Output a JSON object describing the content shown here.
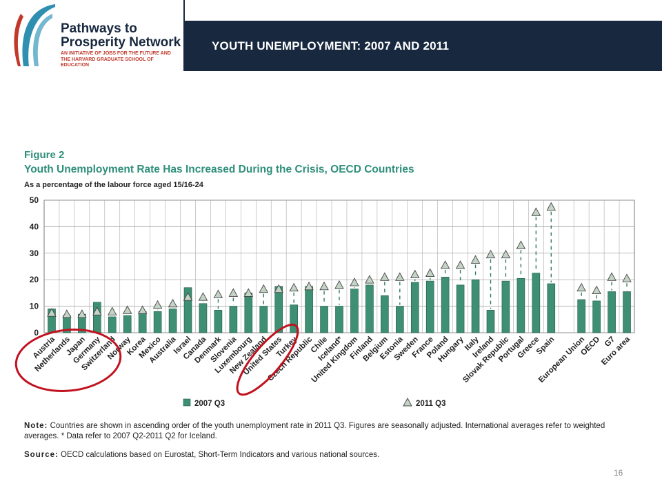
{
  "header": {
    "logo_line1": "Pathways to",
    "logo_line2": "Prosperity Network",
    "logo_sub": "AN INITIATIVE OF JOBS FOR THE FUTURE AND THE HARVARD GRADUATE SCHOOL OF EDUCATION",
    "slide_title": "YOUTH UNEMPLOYMENT: 2007 AND 2011"
  },
  "figure": {
    "label": "Figure 2",
    "title": "Youth Unemployment Rate Has Increased During the Crisis, OECD Countries",
    "subtitle": "As a percentage of the labour force aged 15/16-24"
  },
  "chart_data": {
    "type": "bar",
    "categories": [
      "Austria",
      "Netherlands",
      "Japan",
      "Germany",
      "Switzerland",
      "Norway",
      "Korea",
      "Mexico",
      "Australia",
      "Israel",
      "Canada",
      "Denmark",
      "Slovenia",
      "Luxembourg",
      "New Zealand",
      "United States",
      "Turkey",
      "Czech Republic",
      "Chile",
      "Iceland*",
      "United Kingdom",
      "Finland",
      "Belgium",
      "Estonia",
      "Sweden",
      "France",
      "Poland",
      "Hungary",
      "Italy",
      "Ireland",
      "Slovak Republic",
      "Portugal",
      "Greece",
      "Spain",
      "",
      "European Union",
      "OECD",
      "G7",
      "Euro area"
    ],
    "series": [
      {
        "name": "2007 Q3",
        "type": "bar",
        "values": [
          9,
          6.5,
          7,
          11.5,
          6,
          6.5,
          8,
          8,
          9,
          17,
          11,
          8.5,
          10,
          15,
          10,
          17.5,
          10.5,
          17.5,
          10,
          10,
          16.5,
          18,
          14,
          10,
          19,
          19.5,
          21,
          18,
          20,
          8.5,
          19.5,
          20.5,
          22.5,
          18.5,
          null,
          12.5,
          12,
          15.5,
          15.5
        ]
      },
      {
        "name": "2011 Q3",
        "type": "marker",
        "values": [
          7.5,
          7,
          7,
          8,
          8,
          8.5,
          8.5,
          10.5,
          11,
          13.5,
          13.5,
          14.5,
          15,
          15,
          16.5,
          16.5,
          17,
          17.5,
          17.5,
          18,
          19,
          20,
          21,
          21,
          22,
          22.5,
          25.5,
          25.5,
          27.5,
          29.5,
          29.5,
          33,
          45.5,
          47.5,
          null,
          17,
          16,
          21,
          20.5
        ]
      }
    ],
    "ylim": [
      0,
      50
    ],
    "yticks": [
      0,
      10,
      20,
      30,
      40,
      50
    ],
    "grid": true,
    "legend_position": "bottom",
    "colors": {
      "bar": "#3e8f73",
      "marker": "#c3d3c6",
      "title": "#2f8f7b",
      "highlight": "#c1121f"
    }
  },
  "notes": {
    "note_label": "Note:",
    "note_text": "Countries are shown in ascending order of the youth unemployment rate in 2011 Q3. Figures are seasonally adjusted. International averages refer to weighted averages. * Data refer to 2007 Q2-2011 Q2 for Iceland.",
    "source_label": "Source:",
    "source_text": "OECD calculations based on Eurostat, Short-Term Indicators and various national sources."
  },
  "page_number": "16"
}
